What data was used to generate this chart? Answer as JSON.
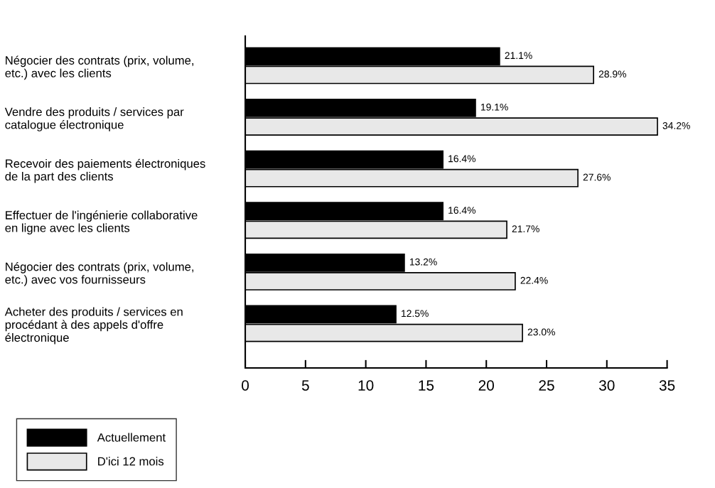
{
  "chart_data": {
    "type": "bar",
    "orientation": "horizontal",
    "categories": [
      "Négocier des contrats (prix, volume,\netc.) avec les clients",
      "Vendre des produits / services par\ncatalogue électronique",
      "Recevoir des paiements électroniques\nde la part des clients",
      "Effectuer de l'ingénierie collaborative\nen ligne avec les clients",
      "Négocier des contrats (prix, volume,\netc.) avec vos fournisseurs",
      "Acheter des produits / services en\nprocédant à des appels d'offre\nélectronique"
    ],
    "series": [
      {
        "name": "Actuellement",
        "color": "#000000",
        "values": [
          21.1,
          19.1,
          16.4,
          16.4,
          13.2,
          12.5
        ],
        "value_labels": [
          "21.1%",
          "19.1%",
          "16.4%",
          "16.4%",
          "13.2%",
          "12.5%"
        ]
      },
      {
        "name": "D'ici 12 mois",
        "color": "#e8e8e8",
        "values": [
          28.9,
          34.2,
          27.6,
          21.7,
          22.4,
          23.0
        ],
        "value_labels": [
          "28.9%",
          "34.2%",
          "27.6%",
          "21.7%",
          "22.4%",
          "23.0%"
        ]
      }
    ],
    "xlim": [
      0,
      35
    ],
    "xticks": [
      0,
      5,
      10,
      15,
      20,
      25,
      30,
      35
    ],
    "grid": false,
    "legend": "bottom left"
  }
}
